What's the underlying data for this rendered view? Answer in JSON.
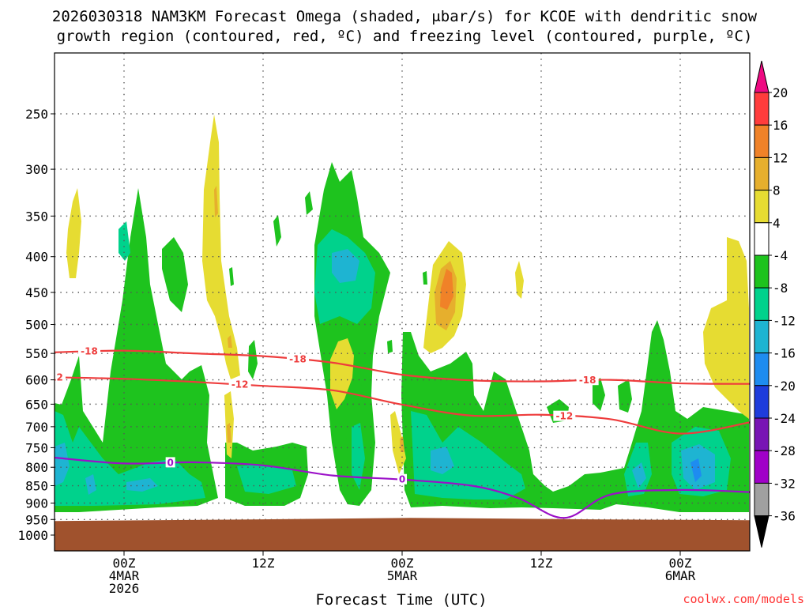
{
  "chart_data": {
    "type": "heatmap",
    "title_line1": "2026030318 NAM3KM Forecast Omega (shaded, μbar/s) for KCOE with dendritic snow",
    "title_line2": "growth region (contoured, red, ºC) and freezing level (contoured, purple, ºC)",
    "xlabel": "Forecast Time (UTC)",
    "ylabel": "",
    "watermark": "coolwx.com/models",
    "y_ticks": [
      "250",
      "300",
      "350",
      "400",
      "450",
      "500",
      "550",
      "600",
      "650",
      "700",
      "750",
      "800",
      "850",
      "900",
      "950",
      "1000"
    ],
    "x_ticks": [
      {
        "hour": 0,
        "l1": "00Z",
        "l2": "4MAR",
        "l3": "2026"
      },
      {
        "hour": 12,
        "l1": "12Z",
        "l2": "",
        "l3": ""
      },
      {
        "hour": 24,
        "l1": "00Z",
        "l2": "5MAR",
        "l3": ""
      },
      {
        "hour": 36,
        "l1": "12Z",
        "l2": "",
        "l3": ""
      },
      {
        "hour": 48,
        "l1": "00Z",
        "l2": "6MAR",
        "l3": ""
      }
    ],
    "x_range_hours": [
      -6,
      54
    ],
    "colorbar": {
      "labels": [
        "20",
        "16",
        "12",
        "8",
        "4",
        "-4",
        "-8",
        "-12",
        "-16",
        "-20",
        "-24",
        "-28",
        "-32",
        "-36"
      ],
      "colors": [
        "#ff3c3c",
        "#f08228",
        "#e6af2d",
        "#e6dc32",
        "#ffffff",
        "#1ec31e",
        "#00d28c",
        "#1eb4d2",
        "#1e8cf0",
        "#1e3cdc",
        "#7814b4",
        "#a000c8",
        "#a0a0a0"
      ],
      "over_color": "#ee0a82",
      "under_color": "#000000"
    },
    "dendritic_contours": [
      {
        "level": "-18",
        "points": [
          [
            -6,
            548
          ],
          [
            0,
            545
          ],
          [
            6,
            550
          ],
          [
            12,
            555
          ],
          [
            18,
            567
          ],
          [
            24,
            590
          ],
          [
            30,
            601
          ],
          [
            36,
            603
          ],
          [
            42,
            600
          ],
          [
            48,
            607
          ],
          [
            54,
            608
          ]
        ]
      },
      {
        "level": "-12",
        "points": [
          [
            -6,
            595
          ],
          [
            0,
            598
          ],
          [
            6,
            604
          ],
          [
            12,
            612
          ],
          [
            18,
            621
          ],
          [
            24,
            651
          ],
          [
            30,
            675
          ],
          [
            36,
            673
          ],
          [
            42,
            683
          ],
          [
            48,
            716
          ],
          [
            54,
            690
          ]
        ]
      }
    ],
    "freezing_level": {
      "level": "0",
      "points": [
        [
          -6,
          775
        ],
        [
          0,
          790
        ],
        [
          6,
          787
        ],
        [
          12,
          795
        ],
        [
          18,
          822
        ],
        [
          24,
          833
        ],
        [
          30,
          850
        ],
        [
          34,
          885
        ],
        [
          38,
          945
        ],
        [
          42,
          875
        ],
        [
          48,
          862
        ],
        [
          54,
          868
        ]
      ]
    },
    "ground_pressure": 945
  }
}
